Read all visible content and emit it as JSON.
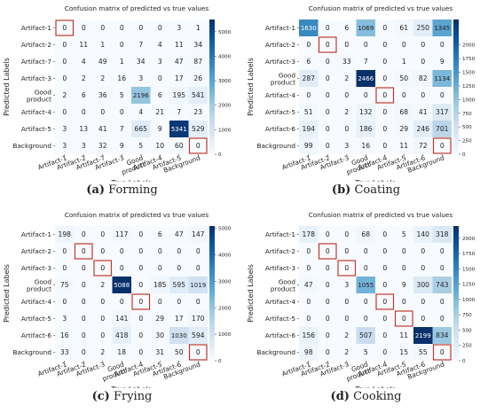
{
  "chart_data": [
    {
      "type": "heatmap",
      "panel_letter": "(a)",
      "caption": "Forming",
      "title": "Confusion matrix of predicted vs true values",
      "xlabel": "True Labels",
      "ylabel": "Predicted Labels",
      "row_labels": [
        "Artifact-1",
        "Artifact-2",
        "Artifact-7",
        "Artifact-3",
        "Good product",
        "Artifact-4",
        "Artifact-5",
        "Background"
      ],
      "col_labels": [
        "Artifact-1",
        "Artifact-2",
        "Artifact-7",
        "Artifact-3",
        "Good product",
        "Artifact-4",
        "Artifact-5",
        "Background"
      ],
      "values": [
        [
          0,
          0,
          0,
          0,
          0,
          0,
          3,
          1
        ],
        [
          0,
          11,
          1,
          0,
          7,
          4,
          11,
          34
        ],
        [
          0,
          4,
          49,
          1,
          34,
          3,
          47,
          87
        ],
        [
          0,
          2,
          2,
          16,
          3,
          0,
          17,
          26
        ],
        [
          2,
          6,
          36,
          5,
          2196,
          6,
          195,
          541
        ],
        [
          0,
          0,
          0,
          0,
          4,
          21,
          7,
          23
        ],
        [
          3,
          13,
          41,
          7,
          665,
          9,
          5341,
          529
        ],
        [
          3,
          3,
          32,
          9,
          5,
          10,
          60,
          0
        ]
      ],
      "highlighted_cells": [
        [
          0,
          0
        ],
        [
          7,
          7
        ]
      ],
      "colorbar": {
        "min": 0,
        "max": 5500,
        "ticks": [
          0,
          1000,
          2000,
          3000,
          4000,
          5000
        ]
      }
    },
    {
      "type": "heatmap",
      "panel_letter": "(b)",
      "caption": "Coating",
      "title": "Confusion matrix of predicted vs true values",
      "xlabel": "True Labels",
      "ylabel": "Predicted Labels",
      "row_labels": [
        "Artifact-1",
        "Artifact-2",
        "Artifact-3",
        "Good product",
        "Artifact-4",
        "Artifact-5",
        "Artifact-6",
        "Background"
      ],
      "col_labels": [
        "Artifact-1",
        "Artifact-2",
        "Artifact-3",
        "Good product",
        "Artifact-4",
        "Artifact-5",
        "Artifact-6",
        "Background"
      ],
      "values": [
        [
          1630,
          0,
          6,
          1069,
          0,
          61,
          250,
          1345
        ],
        [
          0,
          0,
          0,
          0,
          0,
          0,
          0,
          0
        ],
        [
          6,
          0,
          33,
          7,
          0,
          1,
          0,
          9
        ],
        [
          287,
          0,
          2,
          2466,
          0,
          50,
          82,
          1134
        ],
        [
          0,
          0,
          0,
          0,
          0,
          0,
          0,
          0
        ],
        [
          51,
          0,
          2,
          132,
          0,
          68,
          41,
          317
        ],
        [
          194,
          0,
          0,
          186,
          0,
          29,
          246,
          701
        ],
        [
          99,
          0,
          3,
          16,
          0,
          11,
          72,
          0
        ]
      ],
      "highlighted_cells": [
        [
          1,
          1
        ],
        [
          4,
          4
        ],
        [
          7,
          7
        ]
      ],
      "colorbar": {
        "min": 0,
        "max": 2466,
        "ticks": [
          0,
          250,
          500,
          750,
          1000,
          1250,
          1500,
          1750,
          2000
        ]
      }
    },
    {
      "type": "heatmap",
      "panel_letter": "(c)",
      "caption": "Frying",
      "title": "Confusion matrix of predicted vs true values",
      "xlabel": "True Labels",
      "ylabel": "Predicted Labels",
      "row_labels": [
        "Artifact-1",
        "Artifact-2",
        "Artifact-3",
        "Good product",
        "Artifact-4",
        "Artifact-5",
        "Artifact-6",
        "Background"
      ],
      "col_labels": [
        "Artifact-1",
        "Artifact-2",
        "Artifact-3",
        "Good product",
        "Artifact-4",
        "Artifact-5",
        "Artifact-6",
        "Background"
      ],
      "values": [
        [
          198,
          0,
          0,
          117,
          0,
          6,
          47,
          147
        ],
        [
          0,
          0,
          0,
          0,
          0,
          0,
          0,
          0
        ],
        [
          0,
          0,
          0,
          0,
          0,
          0,
          0,
          0
        ],
        [
          75,
          0,
          2,
          5088,
          0,
          185,
          595,
          1019
        ],
        [
          0,
          0,
          0,
          0,
          0,
          0,
          0,
          0
        ],
        [
          3,
          0,
          0,
          141,
          0,
          29,
          17,
          170
        ],
        [
          16,
          0,
          0,
          418,
          0,
          30,
          1030,
          594
        ],
        [
          33,
          0,
          2,
          18,
          0,
          31,
          50,
          0
        ]
      ],
      "highlighted_cells": [
        [
          1,
          1
        ],
        [
          2,
          2
        ],
        [
          4,
          4
        ],
        [
          7,
          7
        ]
      ],
      "colorbar": {
        "min": 0,
        "max": 5088,
        "ticks": [
          0,
          1000,
          2000,
          3000,
          4000,
          5000
        ]
      }
    },
    {
      "type": "heatmap",
      "panel_letter": "(d)",
      "caption": "Cooking",
      "title": "Confusion matrix of predicted vs true values",
      "xlabel": "True Labels",
      "ylabel": "Predicted Labels",
      "row_labels": [
        "Artifact-1",
        "Artifact-2",
        "Artifact-3",
        "Good product",
        "Artifact-4",
        "Artifact-5",
        "Artifact-6",
        "Background"
      ],
      "col_labels": [
        "Artifact-1",
        "Artifact-2",
        "Artifact-3",
        "Good product",
        "Artifact-4",
        "Artifact-5",
        "Artifact-6",
        "Background"
      ],
      "values": [
        [
          178,
          0,
          0,
          68,
          0,
          5,
          140,
          318
        ],
        [
          0,
          0,
          0,
          0,
          0,
          0,
          0,
          0
        ],
        [
          0,
          0,
          0,
          0,
          0,
          0,
          0,
          0
        ],
        [
          47,
          0,
          3,
          1055,
          0,
          9,
          300,
          743
        ],
        [
          0,
          0,
          0,
          0,
          0,
          0,
          0,
          0
        ],
        [
          0,
          0,
          0,
          0,
          0,
          0,
          0,
          0
        ],
        [
          156,
          0,
          2,
          507,
          0,
          11,
          2199,
          834
        ],
        [
          98,
          0,
          2,
          5,
          0,
          15,
          55,
          0
        ]
      ],
      "highlighted_cells": [
        [
          1,
          1
        ],
        [
          2,
          2
        ],
        [
          4,
          4
        ],
        [
          5,
          5
        ],
        [
          7,
          7
        ]
      ],
      "colorbar": {
        "min": 0,
        "max": 2199,
        "ticks": [
          0,
          250,
          500,
          750,
          1000,
          1250,
          1500,
          1750,
          2000
        ]
      }
    }
  ]
}
